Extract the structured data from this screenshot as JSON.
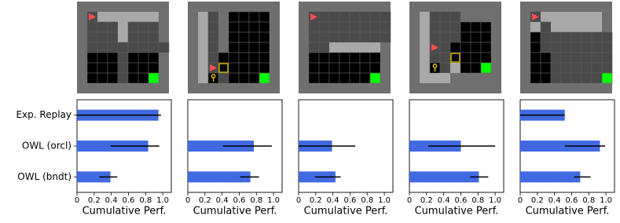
{
  "chart_data": [
    {
      "type": "bar",
      "orientation": "horizontal",
      "categories": [
        "Exp. Replay",
        "OWL (orcl)",
        "OWL (bndt)"
      ],
      "values": [
        0.95,
        0.83,
        0.39
      ],
      "error_lower": [
        0,
        0.39,
        0.26
      ],
      "error_upper": [
        0.98,
        0.96,
        0.47
      ],
      "color": "#4169e1",
      "xlim": [
        0,
        1.1
      ],
      "xticks": [
        0,
        0.2,
        0.4,
        0.6,
        0.8,
        {
          "value": 1,
          "label": "1.0"
        }
      ],
      "xlabel": "Cumulative Perf."
    },
    {
      "type": "bar",
      "orientation": "horizontal",
      "values": [
        null,
        0.77,
        0.73
      ],
      "error_lower": [
        null,
        0.41,
        0.61
      ],
      "error_upper": [
        null,
        0.98,
        0.83
      ],
      "color": "#4169e1",
      "xlim": [
        0,
        1.1
      ],
      "xticks": [
        0,
        0.2,
        0.4,
        0.6,
        0.8,
        {
          "value": 1,
          "label": "1.0"
        }
      ],
      "xlabel": "Cumulative Perf."
    },
    {
      "type": "bar",
      "orientation": "horizontal",
      "values": [
        null,
        0.39,
        0.43
      ],
      "error_lower": [
        null,
        0,
        0.19
      ],
      "error_upper": [
        null,
        0.66,
        0.49
      ],
      "color": "#4169e1",
      "xlim": [
        0,
        1.1
      ],
      "xticks": [
        0,
        0.2,
        0.4,
        0.6,
        0.8,
        {
          "value": 1,
          "label": "1.0"
        }
      ],
      "xlabel": "Cumulative Perf."
    },
    {
      "type": "bar",
      "orientation": "horizontal",
      "values": [
        null,
        0.6,
        0.81
      ],
      "error_lower": [
        null,
        0.22,
        0.71
      ],
      "error_upper": [
        null,
        1,
        0.92
      ],
      "color": "#4169e1",
      "xlim": [
        0,
        1.1
      ],
      "xticks": [
        0,
        0.2,
        0.4,
        0.6,
        0.8,
        {
          "value": 1,
          "label": "1.0"
        }
      ],
      "xlabel": "Cumulative Perf."
    },
    {
      "type": "bar",
      "orientation": "horizontal",
      "values": [
        0.52,
        0.93,
        0.7
      ],
      "error_lower": [
        0,
        0.52,
        0.63
      ],
      "error_upper": [
        0.52,
        0.99,
        0.82
      ],
      "color": "#4169e1",
      "xlim": [
        0,
        1.1
      ],
      "xticks": [
        0,
        0.2,
        0.4,
        0.6,
        0.8,
        {
          "value": 1,
          "label": "1.0"
        }
      ],
      "xlabel": "Cumulative Perf."
    }
  ]
}
